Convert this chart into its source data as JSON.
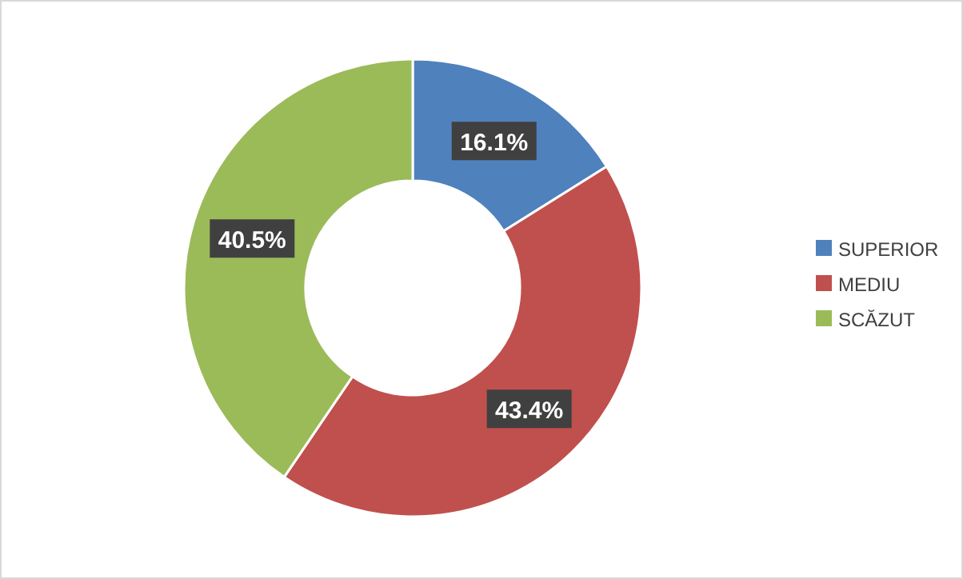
{
  "chart_data": {
    "type": "donut",
    "categories": [
      "SUPERIOR",
      "MEDIU",
      "SCĂZUT"
    ],
    "values": [
      16.1,
      43.4,
      40.5
    ],
    "value_labels": [
      "16.1%",
      "43.4%",
      "40.5%"
    ],
    "colors": [
      "#4f81bd",
      "#c0504d",
      "#9bbb59"
    ],
    "legend": "right"
  }
}
